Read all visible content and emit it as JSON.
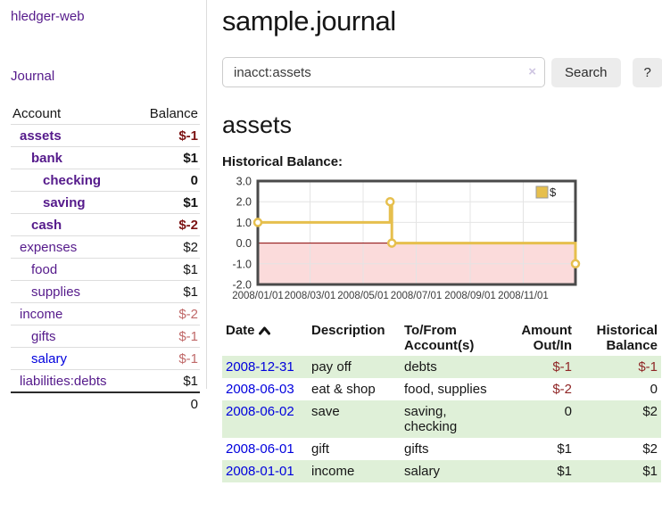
{
  "app": {
    "title": "hledger-web",
    "nav_journal": "Journal"
  },
  "sidebar": {
    "columns": {
      "account": "Account",
      "balance": "Balance"
    },
    "accounts": [
      {
        "name": "assets",
        "indent": 1,
        "bold": true,
        "link": "purple",
        "balance": "$-1",
        "balance_style": "neg-strong"
      },
      {
        "name": "bank",
        "indent": 2,
        "bold": true,
        "link": "purple",
        "balance": "$1",
        "balance_style": "pos-strong"
      },
      {
        "name": "checking",
        "indent": 3,
        "bold": true,
        "link": "purple",
        "balance": "0",
        "balance_style": "pos-strong"
      },
      {
        "name": "saving",
        "indent": 3,
        "bold": true,
        "link": "purple",
        "balance": "$1",
        "balance_style": "pos-strong"
      },
      {
        "name": "cash",
        "indent": 2,
        "bold": true,
        "link": "purple",
        "balance": "$-2",
        "balance_style": "neg-strong"
      },
      {
        "name": "expenses",
        "indent": 1,
        "bold": false,
        "link": "purple",
        "balance": "$2",
        "balance_style": "pos"
      },
      {
        "name": "food",
        "indent": 2,
        "bold": false,
        "link": "purple",
        "balance": "$1",
        "balance_style": "pos"
      },
      {
        "name": "supplies",
        "indent": 2,
        "bold": false,
        "link": "purple",
        "balance": "$1",
        "balance_style": "pos"
      },
      {
        "name": "income",
        "indent": 1,
        "bold": false,
        "link": "purple",
        "balance": "$-2",
        "balance_style": "neg-soft"
      },
      {
        "name": "gifts",
        "indent": 2,
        "bold": false,
        "link": "purple",
        "balance": "$-1",
        "balance_style": "neg-soft"
      },
      {
        "name": "salary",
        "indent": 2,
        "bold": false,
        "link": "blue",
        "balance": "$-1",
        "balance_style": "neg-soft"
      },
      {
        "name": "liabilities:debts",
        "indent": 1,
        "bold": false,
        "link": "purple",
        "balance": "$1",
        "balance_style": "pos"
      }
    ],
    "total": "0"
  },
  "header": {
    "title": "sample.journal"
  },
  "search": {
    "value": "inacct:assets",
    "clear_icon": "×",
    "button_label": "Search",
    "help_label": "?"
  },
  "account_page": {
    "heading": "assets",
    "chart_label": "Historical Balance:"
  },
  "chart_data": {
    "type": "line",
    "title": "Historical Balance",
    "step": true,
    "series": [
      {
        "name": "$",
        "color": "#e6bf4d",
        "points": [
          [
            "2008-01-01",
            1
          ],
          [
            "2008-06-01",
            2
          ],
          [
            "2008-06-03",
            0
          ],
          [
            "2008-12-31",
            -1
          ]
        ]
      }
    ],
    "x_start": "2008-01-01",
    "x_ticks": [
      "2008/01/01",
      "2008/03/01",
      "2008/05/01",
      "2008/07/01",
      "2008/09/01",
      "2008/11/01"
    ],
    "y_ticks": [
      "3.0",
      "2.0",
      "1.0",
      "0.0",
      "-1.0",
      "-2.0"
    ],
    "ylim": [
      -2,
      3
    ],
    "xlim_days": [
      0,
      365
    ],
    "grid": true,
    "negative_fill": "#fbdbdb",
    "zero_line_color": "#8b0000",
    "grid_color": "#e4e4e4",
    "border_color": "#4a4a4a",
    "marker_fill": "#ffffff",
    "legend": {
      "label": "$",
      "position": "top-right"
    }
  },
  "register": {
    "columns": {
      "date": "Date",
      "description": "Description",
      "tofrom": [
        "To/From",
        "Account(s)"
      ],
      "amount": [
        "Amount",
        "Out/In"
      ],
      "balance": [
        "Historical",
        "Balance"
      ]
    },
    "rows": [
      {
        "date": "2008-12-31",
        "description": "pay off",
        "accounts": "debts",
        "amount": "$-1",
        "amount_neg": true,
        "balance": "$-1",
        "balance_neg": true,
        "shaded": true
      },
      {
        "date": "2008-06-03",
        "description": "eat & shop",
        "accounts": "food, supplies",
        "amount": "$-2",
        "amount_neg": true,
        "balance": "0",
        "balance_neg": false,
        "shaded": false
      },
      {
        "date": "2008-06-02",
        "description": "save",
        "accounts": "saving, checking",
        "amount": "0",
        "amount_neg": false,
        "balance": "$2",
        "balance_neg": false,
        "shaded": true
      },
      {
        "date": "2008-06-01",
        "description": "gift",
        "accounts": "gifts",
        "amount": "$1",
        "amount_neg": false,
        "balance": "$2",
        "balance_neg": false,
        "shaded": false
      },
      {
        "date": "2008-01-01",
        "description": "income",
        "accounts": "salary",
        "amount": "$1",
        "amount_neg": false,
        "balance": "$1",
        "balance_neg": false,
        "shaded": true
      }
    ]
  },
  "colors": {
    "accent_purple": "#551a8b",
    "link_blue": "#0000dd",
    "stripe_green": "#dff0d8",
    "neg_strong": "#7c1313",
    "neg_soft": "#c06969",
    "chart_gold": "#e6bf4d"
  }
}
